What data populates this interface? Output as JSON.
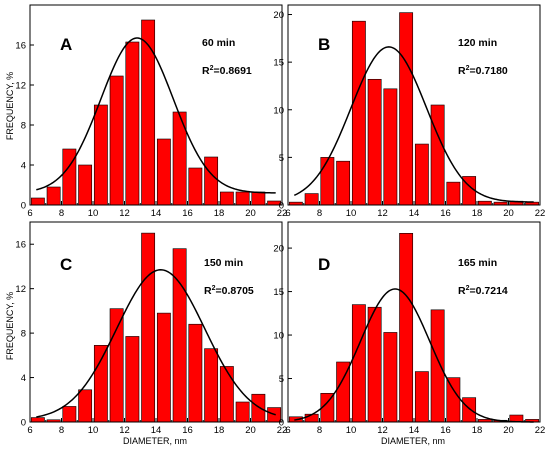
{
  "chart_data": [
    {
      "type": "bar",
      "panel_letter": "A",
      "time_label": "60 min",
      "r2_prefix": "R",
      "r2_sup": "2",
      "r2_value": "=0.8691",
      "ylim": [
        0,
        20
      ],
      "yticks": [
        "0",
        "4",
        "8",
        "12",
        "16"
      ],
      "ytick_values": [
        0,
        4,
        8,
        12,
        16
      ],
      "x": [
        6.5,
        7.5,
        8.5,
        9.5,
        10.5,
        11.5,
        12.5,
        13.5,
        14.5,
        15.5,
        16.5,
        17.5,
        18.5,
        19.5,
        20.5,
        21.5
      ],
      "values": [
        0.7,
        1.8,
        5.6,
        4.0,
        10.0,
        12.9,
        16.3,
        18.5,
        6.6,
        9.3,
        3.7,
        4.8,
        1.3,
        1.3,
        1.3,
        0.4
      ],
      "fit": {
        "amplitude": 15.5,
        "mean": 12.8,
        "sigma": 2.3,
        "offset": 1.2
      }
    },
    {
      "type": "bar",
      "panel_letter": "B",
      "time_label": "120 min",
      "r2_prefix": "R",
      "r2_sup": "2",
      "r2_value": "=0.7180",
      "ylim": [
        0,
        21
      ],
      "yticks": [
        "0",
        "5",
        "10",
        "15",
        "20"
      ],
      "ytick_values": [
        0,
        5,
        10,
        15,
        20
      ],
      "x": [
        6.5,
        7.5,
        8.5,
        9.5,
        10.5,
        11.5,
        12.5,
        13.5,
        14.5,
        15.5,
        16.5,
        17.5,
        18.5,
        19.5,
        20.5,
        21.5
      ],
      "values": [
        0.3,
        1.2,
        5.0,
        4.6,
        19.3,
        13.2,
        12.2,
        20.2,
        6.4,
        10.5,
        2.4,
        3.0,
        0.4,
        0.3,
        0.4,
        0.3
      ],
      "fit": {
        "amplitude": 16.3,
        "mean": 12.4,
        "sigma": 2.4,
        "offset": 0.3
      }
    },
    {
      "type": "bar",
      "panel_letter": "C",
      "time_label": "150 min",
      "r2_prefix": "R",
      "r2_sup": "2",
      "r2_value": "=0.8705",
      "ylim": [
        0,
        18
      ],
      "yticks": [
        "0",
        "4",
        "8",
        "12",
        "16"
      ],
      "ytick_values": [
        0,
        4,
        8,
        12,
        16
      ],
      "x": [
        6.5,
        7.5,
        8.5,
        9.5,
        10.5,
        11.5,
        12.5,
        13.5,
        14.5,
        15.5,
        16.5,
        17.5,
        18.5,
        19.5,
        20.5,
        21.5
      ],
      "values": [
        0.4,
        0.2,
        1.4,
        2.9,
        6.9,
        10.2,
        7.7,
        17.0,
        9.8,
        15.6,
        8.8,
        6.6,
        5.0,
        1.8,
        2.5,
        1.3
      ],
      "fit": {
        "amplitude": 13.5,
        "mean": 14.3,
        "sigma": 2.8,
        "offset": 0.2
      }
    },
    {
      "type": "bar",
      "panel_letter": "D",
      "time_label": "165 min",
      "r2_prefix": "R",
      "r2_sup": "2",
      "r2_value": "=0.7214",
      "ylim": [
        0,
        23
      ],
      "yticks": [
        "0",
        "5",
        "10",
        "15",
        "20"
      ],
      "ytick_values": [
        0,
        5,
        10,
        15,
        20
      ],
      "x": [
        6.5,
        7.5,
        8.5,
        9.5,
        10.5,
        11.5,
        12.5,
        13.5,
        14.5,
        15.5,
        16.5,
        17.5,
        18.5,
        19.5,
        20.5,
        21.5
      ],
      "values": [
        0.6,
        0.9,
        3.3,
        6.9,
        13.5,
        13.2,
        10.3,
        21.7,
        5.8,
        12.9,
        5.1,
        2.8,
        0.3,
        0.2,
        0.8,
        0.3
      ],
      "fit": {
        "amplitude": 15.3,
        "mean": 12.8,
        "sigma": 2.2,
        "offset": 0.0
      }
    }
  ],
  "axes": {
    "xlabel": "DIAMETER, nm",
    "ylabel": "FREQUENCY, %",
    "xlim": [
      6,
      22
    ],
    "xticks": [
      "6",
      "8",
      "10",
      "12",
      "14",
      "16",
      "18",
      "20",
      "22"
    ],
    "xtick_values": [
      6,
      8,
      10,
      12,
      14,
      16,
      18,
      20,
      22
    ]
  },
  "colors": {
    "bar_fill": "#ff0000",
    "bar_stroke": "#000000",
    "fit_line": "#000000",
    "background": "#ffffff"
  }
}
